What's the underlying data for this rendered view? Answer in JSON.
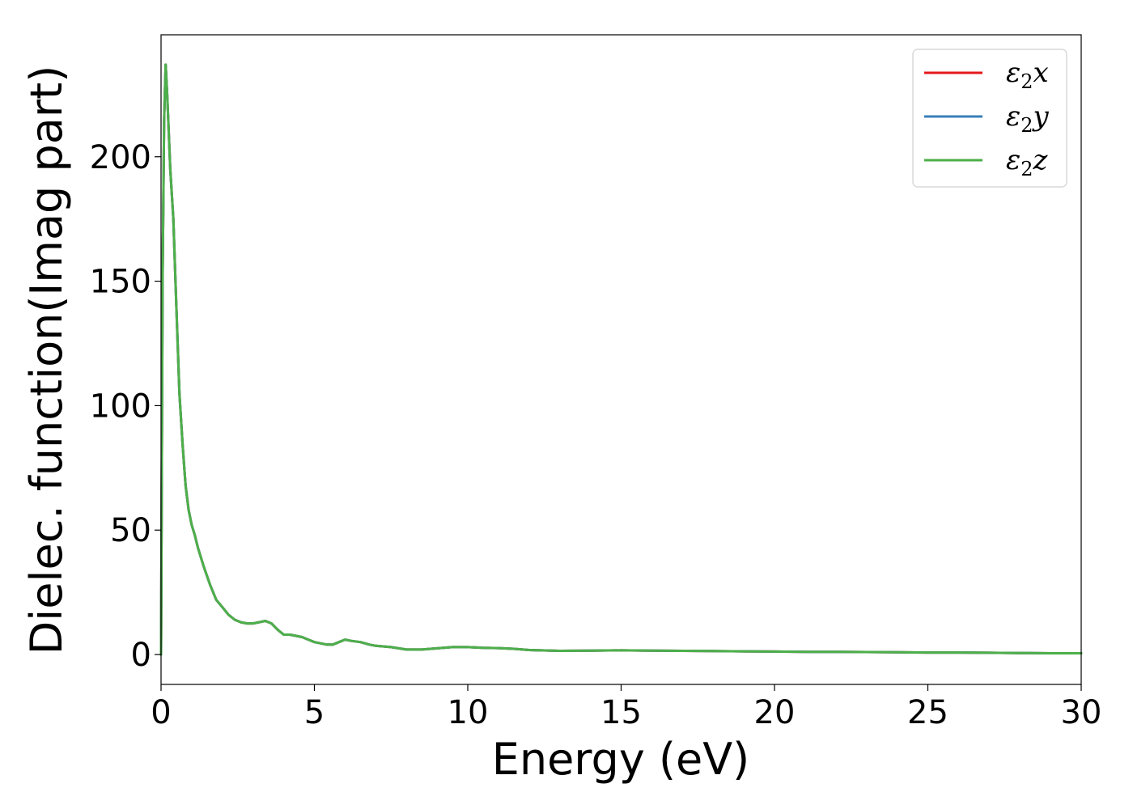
{
  "chart_data": {
    "type": "line",
    "title": "",
    "xlabel": "Energy (eV)",
    "ylabel": "Dielec. function(Imag part)",
    "xlim": [
      0,
      30
    ],
    "ylim": [
      -12,
      249
    ],
    "x_ticks": [
      0,
      5,
      10,
      15,
      20,
      25,
      30
    ],
    "y_ticks": [
      0,
      50,
      100,
      150,
      200
    ],
    "grid": false,
    "legend": "top-right",
    "series": [
      {
        "name": "ε2x",
        "legend_main": "ε",
        "legend_sub": "2",
        "legend_tail": "x",
        "color": "#e41a1c",
        "x": [
          0,
          0.05,
          0.1,
          0.15,
          0.2,
          0.3,
          0.4,
          0.5,
          0.6,
          0.7,
          0.8,
          0.9,
          1.0,
          1.1,
          1.2,
          1.4,
          1.6,
          1.8,
          2.0,
          2.2,
          2.4,
          2.6,
          2.8,
          3.0,
          3.2,
          3.4,
          3.6,
          3.8,
          4.0,
          4.2,
          4.4,
          4.6,
          4.8,
          5.0,
          5.2,
          5.4,
          5.6,
          5.8,
          6.0,
          6.2,
          6.5,
          6.8,
          7.0,
          7.5,
          8.0,
          8.5,
          9.0,
          9.5,
          10.0,
          10.5,
          11.0,
          11.5,
          12.0,
          13.0,
          14.0,
          15.0,
          16.0,
          17.0,
          18.0,
          19.0,
          20.0,
          21.0,
          22.0,
          23.0,
          24.0,
          25.0,
          26.0,
          27.0,
          28.0,
          29.0,
          30.0
        ],
        "y": [
          0,
          150,
          215,
          237,
          225,
          195,
          175,
          140,
          105,
          85,
          68,
          58,
          52,
          48,
          43,
          35,
          28,
          22,
          19,
          16,
          14,
          13,
          12.5,
          12.5,
          13,
          13.5,
          12.5,
          10,
          8,
          8,
          7.5,
          7,
          6,
          5,
          4.5,
          4,
          4,
          5,
          6,
          5.5,
          5,
          4,
          3.5,
          3,
          2,
          2,
          2.5,
          3,
          3,
          2.7,
          2.6,
          2.3,
          1.8,
          1.5,
          1.6,
          1.7,
          1.6,
          1.5,
          1.4,
          1.3,
          1.2,
          1.1,
          1.1,
          1.0,
          0.9,
          0.8,
          0.8,
          0.7,
          0.6,
          0.5,
          0.5
        ]
      },
      {
        "name": "ε2y",
        "legend_main": "ε",
        "legend_sub": "2",
        "legend_tail": "y",
        "color": "#377eb8",
        "x": [
          0,
          0.05,
          0.1,
          0.15,
          0.2,
          0.3,
          0.4,
          0.5,
          0.6,
          0.7,
          0.8,
          0.9,
          1.0,
          1.1,
          1.2,
          1.4,
          1.6,
          1.8,
          2.0,
          2.2,
          2.4,
          2.6,
          2.8,
          3.0,
          3.2,
          3.4,
          3.6,
          3.8,
          4.0,
          4.2,
          4.4,
          4.6,
          4.8,
          5.0,
          5.2,
          5.4,
          5.6,
          5.8,
          6.0,
          6.2,
          6.5,
          6.8,
          7.0,
          7.5,
          8.0,
          8.5,
          9.0,
          9.5,
          10.0,
          10.5,
          11.0,
          11.5,
          12.0,
          13.0,
          14.0,
          15.0,
          16.0,
          17.0,
          18.0,
          19.0,
          20.0,
          21.0,
          22.0,
          23.0,
          24.0,
          25.0,
          26.0,
          27.0,
          28.0,
          29.0,
          30.0
        ],
        "y": [
          0,
          150,
          215,
          237,
          225,
          195,
          175,
          140,
          105,
          85,
          68,
          58,
          52,
          48,
          43,
          35,
          28,
          22,
          19,
          16,
          14,
          13,
          12.5,
          12.5,
          13,
          13.5,
          12.5,
          10,
          8,
          8,
          7.5,
          7,
          6,
          5,
          4.5,
          4,
          4,
          5,
          6,
          5.5,
          5,
          4,
          3.5,
          3,
          2,
          2,
          2.5,
          3,
          3,
          2.7,
          2.6,
          2.3,
          1.8,
          1.5,
          1.6,
          1.7,
          1.6,
          1.5,
          1.4,
          1.3,
          1.2,
          1.1,
          1.1,
          1.0,
          0.9,
          0.8,
          0.8,
          0.7,
          0.6,
          0.5,
          0.5
        ]
      },
      {
        "name": "ε2z",
        "legend_main": "ε",
        "legend_sub": "2",
        "legend_tail": "z",
        "color": "#4daf4a",
        "x": [
          0,
          0.05,
          0.1,
          0.15,
          0.2,
          0.3,
          0.4,
          0.5,
          0.6,
          0.7,
          0.8,
          0.9,
          1.0,
          1.1,
          1.2,
          1.4,
          1.6,
          1.8,
          2.0,
          2.2,
          2.4,
          2.6,
          2.8,
          3.0,
          3.2,
          3.4,
          3.6,
          3.8,
          4.0,
          4.2,
          4.4,
          4.6,
          4.8,
          5.0,
          5.2,
          5.4,
          5.6,
          5.8,
          6.0,
          6.2,
          6.5,
          6.8,
          7.0,
          7.5,
          8.0,
          8.5,
          9.0,
          9.5,
          10.0,
          10.5,
          11.0,
          11.5,
          12.0,
          13.0,
          14.0,
          15.0,
          16.0,
          17.0,
          18.0,
          19.0,
          20.0,
          21.0,
          22.0,
          23.0,
          24.0,
          25.0,
          26.0,
          27.0,
          28.0,
          29.0,
          30.0
        ],
        "y": [
          0,
          150,
          215,
          237,
          225,
          195,
          175,
          140,
          105,
          85,
          68,
          58,
          52,
          48,
          43,
          35,
          28,
          22,
          19,
          16,
          14,
          13,
          12.5,
          12.5,
          13,
          13.5,
          12.5,
          10,
          8,
          8,
          7.5,
          7,
          6,
          5,
          4.5,
          4,
          4,
          5,
          6,
          5.5,
          5,
          4,
          3.5,
          3,
          2,
          2,
          2.5,
          3,
          3,
          2.7,
          2.6,
          2.3,
          1.8,
          1.5,
          1.6,
          1.7,
          1.6,
          1.5,
          1.4,
          1.3,
          1.2,
          1.1,
          1.1,
          1.0,
          0.9,
          0.8,
          0.8,
          0.7,
          0.6,
          0.5,
          0.5
        ]
      }
    ]
  }
}
